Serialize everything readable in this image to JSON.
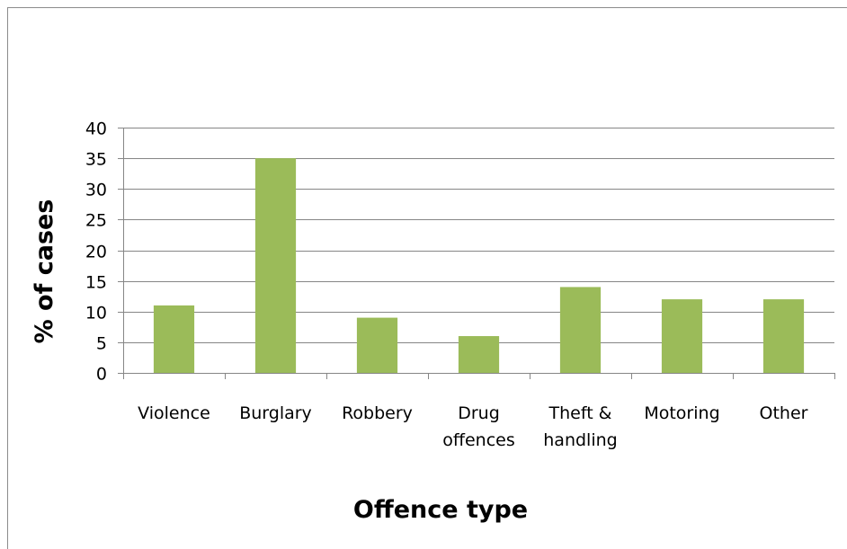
{
  "chart_data": {
    "type": "bar",
    "categories": [
      [
        "Violence"
      ],
      [
        "Burglary"
      ],
      [
        "Robbery"
      ],
      [
        "Drug",
        "offences"
      ],
      [
        "Theft &",
        "handling"
      ],
      [
        "Motoring"
      ],
      [
        "Other"
      ]
    ],
    "values": [
      11,
      35,
      9,
      6,
      14,
      12,
      12
    ],
    "title": "",
    "xlabel": "Offence type",
    "ylabel": "% of cases",
    "ylim": [
      0,
      40
    ],
    "yticks": [
      0,
      5,
      10,
      15,
      20,
      25,
      30,
      35,
      40
    ],
    "grid": true,
    "legend": "none",
    "colors": {
      "bar": "#9BBB59",
      "gridline": "#868686",
      "axis": "#868686"
    }
  }
}
